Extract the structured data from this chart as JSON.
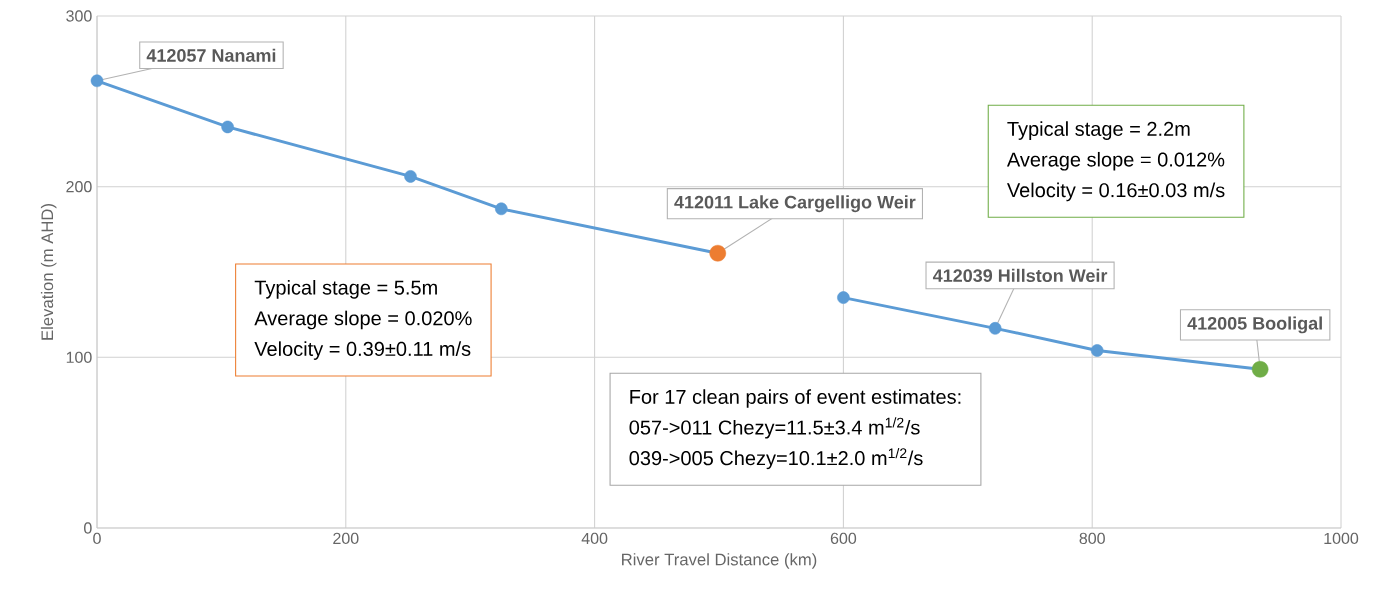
{
  "chart_data": {
    "type": "line",
    "xlabel": "River Travel Distance (km)",
    "ylabel": "Elevation (m AHD)",
    "xlim": [
      0,
      1000
    ],
    "ylim": [
      0,
      300
    ],
    "xticks": [
      0,
      200,
      400,
      600,
      800,
      1000
    ],
    "yticks": [
      0,
      100,
      200,
      300
    ],
    "grid": true,
    "marker": "circle",
    "series": [
      {
        "color": "#5b9bd5",
        "x": [
          0,
          105,
          252,
          325,
          499
        ],
        "values": [
          262,
          235,
          206,
          187,
          161
        ],
        "colors": [
          "#5b9bd5",
          "#5b9bd5",
          "#5b9bd5",
          "#5b9bd5",
          "#ed7d31"
        ]
      },
      {
        "color": "#5b9bd5",
        "x": [
          600,
          722,
          804,
          935
        ],
        "values": [
          135,
          117,
          104,
          93
        ],
        "colors": [
          "#5b9bd5",
          "#5b9bd5",
          "#5b9bd5",
          "#70ad47"
        ]
      }
    ],
    "annotations": [
      {
        "text": "412057 Nanami",
        "x": 0,
        "y": 262
      },
      {
        "text": "412011 Lake Cargelligo Weir",
        "x": 499,
        "y": 161
      },
      {
        "text": "412039 Hillston Weir",
        "x": 722,
        "y": 117
      },
      {
        "text": "412005 Booligal",
        "x": 935,
        "y": 93
      },
      "Typical stage = 5.5m",
      "Average slope = 0.020%",
      "Velocity = 0.39±0.11 m/s",
      "Typical stage = 2.2m",
      "Average slope = 0.012%",
      "Velocity = 0.16±0.03 m/s",
      "For 17 clean pairs of event estimates:",
      "057->011 Chezy=11.5±3.4 m$^{1/2}$/s",
      "039->005 Chezy=10.1±2.0 m$^{1/2}$/s"
    ]
  }
}
